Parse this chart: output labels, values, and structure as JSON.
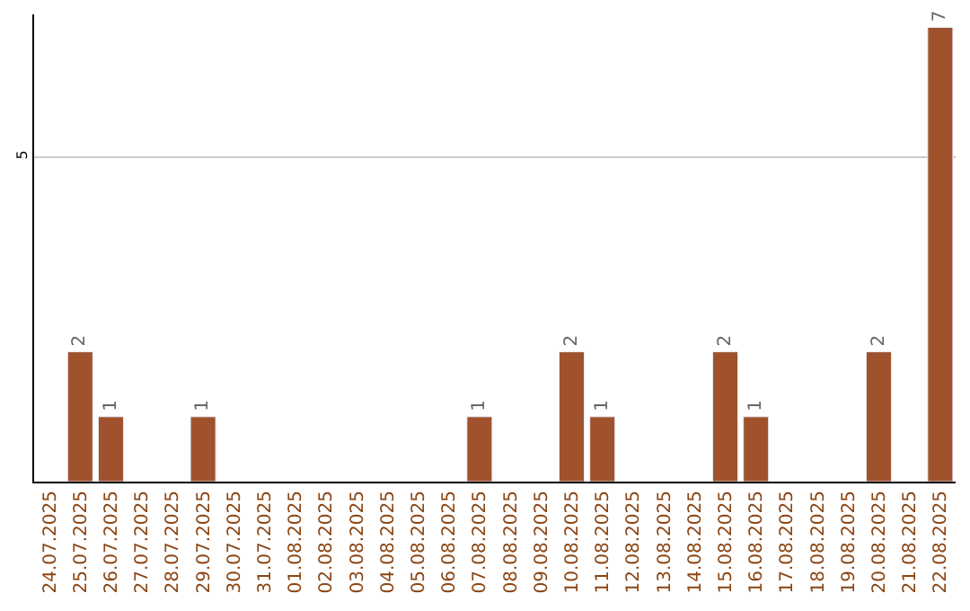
{
  "chart_data": {
    "type": "bar",
    "categories": [
      "24.07.2025",
      "25.07.2025",
      "26.07.2025",
      "27.07.2025",
      "28.07.2025",
      "29.07.2025",
      "30.07.2025",
      "31.07.2025",
      "01.08.2025",
      "02.08.2025",
      "03.08.2025",
      "04.08.2025",
      "05.08.2025",
      "06.08.2025",
      "07.08.2025",
      "08.08.2025",
      "09.08.2025",
      "10.08.2025",
      "11.08.2025",
      "12.08.2025",
      "13.08.2025",
      "14.08.2025",
      "15.08.2025",
      "16.08.2025",
      "17.08.2025",
      "18.08.2025",
      "19.08.2025",
      "20.08.2025",
      "21.08.2025",
      "22.08.2025"
    ],
    "values": [
      null,
      2,
      1,
      null,
      null,
      1,
      null,
      null,
      null,
      null,
      null,
      null,
      null,
      null,
      1,
      null,
      null,
      2,
      1,
      null,
      null,
      null,
      2,
      1,
      null,
      null,
      null,
      2,
      null,
      7
    ],
    "color": "#a0522d",
    "ylim": [
      0,
      7.2
    ],
    "yticks": [
      5
    ],
    "grid": "y",
    "data_labels": true,
    "legend": false
  }
}
